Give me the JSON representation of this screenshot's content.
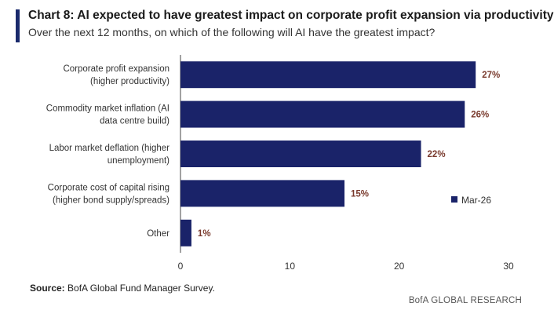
{
  "header": {
    "title": "Chart 8: AI expected to have greatest impact on corporate profit expansion via productivity",
    "subtitle": "Over the next 12 months, on which of the following will AI have the greatest impact?"
  },
  "source": {
    "label": "Source:",
    "text": "BofA Global Fund Manager Survey."
  },
  "footer": {
    "brand": "BofA GLOBAL RESEARCH"
  },
  "colors": {
    "bar": "#1a2369",
    "accent": "#1a2a6c",
    "value_label": "#7a3b2e"
  },
  "chart_data": {
    "type": "bar",
    "orientation": "horizontal",
    "categories": [
      [
        "Corporate profit expansion",
        "(higher productivity)"
      ],
      [
        "Commodity market inflation (AI",
        "data centre build)"
      ],
      [
        "Labor market deflation (higher",
        "unemployment)"
      ],
      [
        "Corporate cost of capital rising",
        "(higher bond supply/spreads)"
      ],
      [
        "Other"
      ]
    ],
    "series": [
      {
        "name": "Mar-26",
        "values": [
          27,
          26,
          22,
          15,
          1
        ]
      }
    ],
    "value_labels": [
      "27%",
      "26%",
      "22%",
      "15%",
      "1%"
    ],
    "xlim": [
      0,
      30
    ],
    "xticks": [
      0,
      10,
      20,
      30
    ],
    "grid": false,
    "legend_position": "right"
  }
}
